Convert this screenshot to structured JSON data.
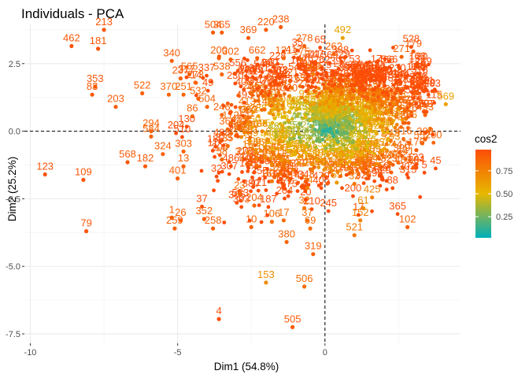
{
  "chart_data": {
    "type": "scatter",
    "title": "Individuals - PCA",
    "xlabel": "Dim1 (54.8%)",
    "ylabel": "Dim2 (25.2%)",
    "xlim": [
      -10.2,
      4.6
    ],
    "ylim": [
      -7.85,
      3.95
    ],
    "xticks": [
      -10,
      -5,
      0
    ],
    "xtick_labels": [
      "-10",
      "-5",
      "0"
    ],
    "yticks": [
      2.5,
      0.0,
      -2.5,
      -5.0,
      -7.5
    ],
    "ytick_labels": [
      "2.5",
      "0.0",
      "-2.5",
      "-5.0",
      "-7.5"
    ],
    "grid": true,
    "reference_lines": {
      "x": 0,
      "y": 0,
      "style": "dashed"
    },
    "color_variable": "cos2",
    "legend": {
      "title": "cos2",
      "position": "right",
      "breaks": [
        0.75,
        0.5,
        0.25
      ],
      "break_labels": [
        "0.75",
        "0.50",
        "0.25"
      ],
      "range": [
        0.02,
        0.98
      ],
      "colors": [
        "#00AFBB",
        "#E7B800",
        "#FC4E07"
      ]
    },
    "points": [
      {
        "label": "213",
        "x": -7.5,
        "y": 3.75,
        "cos2": 0.95
      },
      {
        "label": "462",
        "x": -8.6,
        "y": 3.15,
        "cos2": 0.95
      },
      {
        "label": "181",
        "x": -7.7,
        "y": 3.05,
        "cos2": 0.95
      },
      {
        "label": "353",
        "x": -7.8,
        "y": 1.65,
        "cos2": 0.93
      },
      {
        "label": "83",
        "x": -7.9,
        "y": 1.35,
        "cos2": 0.93
      },
      {
        "label": "203",
        "x": -7.1,
        "y": 0.9,
        "cos2": 0.92
      },
      {
        "label": "522",
        "x": -6.2,
        "y": 1.4,
        "cos2": 0.9
      },
      {
        "label": "340",
        "x": -5.2,
        "y": 2.6,
        "cos2": 0.92
      },
      {
        "label": "237",
        "x": -4.9,
        "y": 1.95,
        "cos2": 0.9
      },
      {
        "label": "565",
        "x": -4.6,
        "y": 2.1,
        "cos2": 0.9
      },
      {
        "label": "370",
        "x": -5.3,
        "y": 1.35,
        "cos2": 0.88
      },
      {
        "label": "294",
        "x": -5.9,
        "y": 0.0,
        "cos2": 0.88
      },
      {
        "label": "584",
        "x": -5.9,
        "y": -0.2,
        "cos2": 0.88
      },
      {
        "label": "324",
        "x": -5.5,
        "y": -0.85,
        "cos2": 0.9
      },
      {
        "label": "303",
        "x": -4.8,
        "y": -0.75,
        "cos2": 0.9
      },
      {
        "label": "568",
        "x": -6.7,
        "y": -1.15,
        "cos2": 0.93
      },
      {
        "label": "182",
        "x": -6.1,
        "y": -1.3,
        "cos2": 0.93
      },
      {
        "label": "13",
        "x": -4.8,
        "y": -1.3,
        "cos2": 0.9
      },
      {
        "label": "401",
        "x": -5.0,
        "y": -1.75,
        "cos2": 0.9
      },
      {
        "label": "123",
        "x": -9.5,
        "y": -1.6,
        "cos2": 0.96
      },
      {
        "label": "109",
        "x": -8.2,
        "y": -1.8,
        "cos2": 0.95
      },
      {
        "label": "79",
        "x": -8.1,
        "y": -3.7,
        "cos2": 0.95
      },
      {
        "label": "1",
        "x": -5.2,
        "y": -3.2,
        "cos2": 0.9
      },
      {
        "label": "26",
        "x": -4.9,
        "y": -3.3,
        "cos2": 0.9
      },
      {
        "label": "259",
        "x": -5.1,
        "y": -3.6,
        "cos2": 0.9
      },
      {
        "label": "352",
        "x": -4.1,
        "y": -3.25,
        "cos2": 0.9
      },
      {
        "label": "258",
        "x": -3.8,
        "y": -3.6,
        "cos2": 0.9
      },
      {
        "label": "4",
        "x": -3.6,
        "y": -6.95,
        "cos2": 0.97
      },
      {
        "label": "153",
        "x": -2.0,
        "y": -5.6,
        "cos2": 0.7
      },
      {
        "label": "506",
        "x": -0.7,
        "y": -5.75,
        "cos2": 0.85
      },
      {
        "label": "505",
        "x": -1.1,
        "y": -7.25,
        "cos2": 0.93
      },
      {
        "label": "319",
        "x": -0.4,
        "y": -4.55,
        "cos2": 0.9
      },
      {
        "label": "380",
        "x": -1.3,
        "y": -4.1,
        "cos2": 0.88
      },
      {
        "label": "69",
        "x": -0.5,
        "y": -3.6,
        "cos2": 0.85
      },
      {
        "label": "102",
        "x": 2.8,
        "y": -3.55,
        "cos2": 0.9
      },
      {
        "label": "521",
        "x": 1.0,
        "y": -3.85,
        "cos2": 0.8
      },
      {
        "label": "152",
        "x": 1.2,
        "y": -3.3,
        "cos2": 0.75
      },
      {
        "label": "61",
        "x": 1.3,
        "y": -2.85,
        "cos2": 0.7
      },
      {
        "label": "179",
        "x": 3.0,
        "y": 2.95,
        "cos2": 0.92
      },
      {
        "label": "271",
        "x": 2.6,
        "y": 2.75,
        "cos2": 0.9
      },
      {
        "label": "492",
        "x": 0.6,
        "y": 3.45,
        "cos2": 0.6
      },
      {
        "label": "569",
        "x": 4.1,
        "y": 1.0,
        "cos2": 0.6
      },
      {
        "label": "493",
        "x": 3.4,
        "y": 0.6,
        "cos2": 0.88
      },
      {
        "label": "308",
        "x": 3.4,
        "y": -0.3,
        "cos2": 0.88
      },
      {
        "label": "238",
        "x": -1.5,
        "y": 3.85,
        "cos2": 0.93
      },
      {
        "label": "220",
        "x": -2.0,
        "y": 3.75,
        "cos2": 0.92
      },
      {
        "label": "278",
        "x": -0.7,
        "y": 3.15,
        "cos2": 0.9
      },
      {
        "label": "504",
        "x": -3.8,
        "y": 3.65,
        "cos2": 0.92
      },
      {
        "label": "365",
        "x": -3.5,
        "y": 3.65,
        "cos2": 0.92
      },
      {
        "label": "369",
        "x": -2.6,
        "y": 3.45,
        "cos2": 0.92
      },
      {
        "label": "262",
        "x": 0.3,
        "y": 2.85,
        "cos2": 0.88
      },
      {
        "label": "32",
        "x": 1.0,
        "y": -1.95,
        "cos2": 0.8
      },
      {
        "label": "425",
        "x": 1.6,
        "y": -2.45,
        "cos2": 0.75
      },
      {
        "label": "60",
        "x": 3.0,
        "y": -1.35,
        "cos2": 0.9
      },
      {
        "label": "176",
        "x": 3.1,
        "y": -0.7,
        "cos2": 0.9
      },
      {
        "label": "23",
        "x": -2.9,
        "y": -2.3,
        "cos2": 0.85
      },
      {
        "label": "204",
        "x": -2.4,
        "y": -2.75,
        "cos2": 0.88
      },
      {
        "label": "106",
        "x": -1.8,
        "y": -3.35,
        "cos2": 0.85
      },
      {
        "label": "10",
        "x": -2.5,
        "y": -3.55,
        "cos2": 0.88
      },
      {
        "label": "17",
        "x": -1.4,
        "y": -3.3,
        "cos2": 0.85
      },
      {
        "label": "37",
        "x": -0.6,
        "y": -3.3,
        "cos2": 0.82
      },
      {
        "label": "32",
        "x": -0.7,
        "y": -2.85,
        "cos2": 0.8
      },
      {
        "label": "35",
        "x": -3.3,
        "y": -0.55,
        "cos2": 0.85
      },
      {
        "label": "58",
        "x": -3.5,
        "y": -1.05,
        "cos2": 0.85
      },
      {
        "label": "86",
        "x": -4.5,
        "y": 0.55,
        "cos2": 0.88
      },
      {
        "label": "273",
        "x": -4.4,
        "y": 1.8,
        "cos2": 0.88
      },
      {
        "label": "251",
        "x": -4.8,
        "y": 1.35,
        "cos2": 0.88
      },
      {
        "label": "532",
        "x": -4.3,
        "y": 1.2,
        "cos2": 0.88
      },
      {
        "label": "504",
        "x": -4.0,
        "y": 0.9,
        "cos2": 0.88
      },
      {
        "label": "200",
        "x": -3.6,
        "y": 2.7,
        "cos2": 0.9
      },
      {
        "label": "302",
        "x": -3.2,
        "y": 2.65,
        "cos2": 0.9
      },
      {
        "label": "662",
        "x": -2.3,
        "y": 2.7,
        "cos2": 0.9
      },
      {
        "label": "121",
        "x": -1.4,
        "y": 2.7,
        "cos2": 0.88
      },
      {
        "label": "175",
        "x": -0.8,
        "y": 2.65,
        "cos2": 0.85
      },
      {
        "label": "538",
        "x": -3.5,
        "y": 2.1,
        "cos2": 0.88
      },
      {
        "label": "246",
        "x": -3.5,
        "y": 0.6,
        "cos2": 0.88
      },
      {
        "label": "172",
        "x": -3.2,
        "y": 0.3,
        "cos2": 0.85
      },
      {
        "label": "330",
        "x": -2.6,
        "y": 0.5,
        "cos2": 0.85
      },
      {
        "label": "256",
        "x": -2.5,
        "y": 1.4,
        "cos2": 0.85
      },
      {
        "label": "339",
        "x": -2.1,
        "y": 1.3,
        "cos2": 0.85
      },
      {
        "label": "921",
        "x": -0.6,
        "y": 1.1,
        "cos2": 0.6
      },
      {
        "label": "19",
        "x": -1.6,
        "y": -1.25,
        "cos2": 0.8
      },
      {
        "label": "302",
        "x": -1.8,
        "y": -1.85,
        "cos2": 0.8
      },
      {
        "label": "74",
        "x": -0.6,
        "y": -2.1,
        "cos2": 0.75
      },
      {
        "label": "59",
        "x": 0.4,
        "y": -1.9,
        "cos2": 0.65
      },
      {
        "label": "509",
        "x": -0.4,
        "y": 2.1,
        "cos2": 0.75
      },
      {
        "label": "60",
        "x": 3.1,
        "y": 1.4,
        "cos2": 0.88
      }
    ]
  }
}
